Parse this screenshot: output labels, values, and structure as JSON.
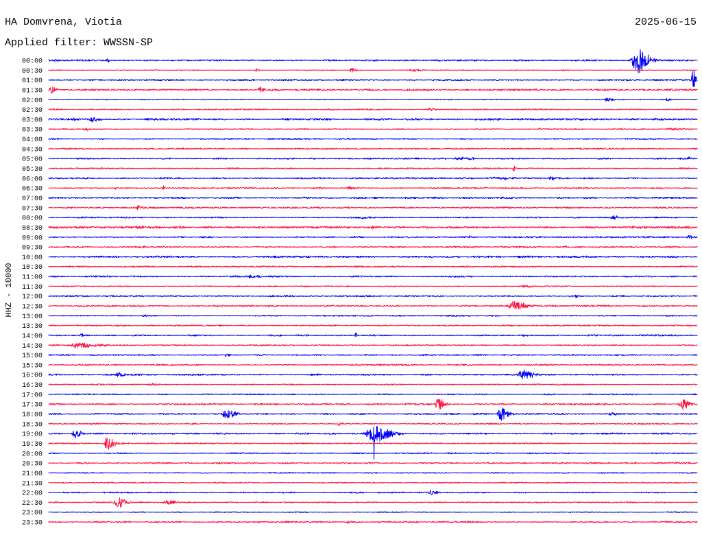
{
  "chart_data": {
    "type": "line",
    "title": "HA Domvrena, Viotia",
    "date": "2025-06-15",
    "filter_label": "Applied filter: WWSSN-SP",
    "ylabel": "HHZ - 10000",
    "colors": [
      "#0000f5",
      "#ff1444"
    ],
    "rows": [
      {
        "label": "00:00",
        "noise": 0.06,
        "events": [
          {
            "minute": 0.3,
            "amp": 0.12,
            "dur": 0.3
          },
          {
            "minute": 2.7,
            "amp": 0.15,
            "dur": 0.3
          },
          {
            "minute": 27.2,
            "amp": 1.3,
            "dur": 1.1
          }
        ]
      },
      {
        "label": "00:30",
        "noise": 0.03,
        "events": [
          {
            "minute": 9.6,
            "amp": 0.15,
            "dur": 0.3
          },
          {
            "minute": 14.0,
            "amp": 0.25,
            "dur": 0.4
          },
          {
            "minute": 16.8,
            "amp": 0.12,
            "dur": 1.0
          },
          {
            "minute": 23.8,
            "amp": 0.1,
            "dur": 0.3
          }
        ]
      },
      {
        "label": "01:00",
        "noise": 0.06,
        "events": [
          {
            "minute": 29.8,
            "amp": 1.0,
            "dur": 0.3
          },
          {
            "minute": 29.85,
            "amp": 2.4,
            "dur": 0.05
          }
        ]
      },
      {
        "label": "01:30",
        "noise": 0.07,
        "events": [
          {
            "minute": 0.1,
            "amp": 0.45,
            "dur": 0.5
          },
          {
            "minute": 3.0,
            "amp": 0.1,
            "dur": 0.2
          },
          {
            "minute": 9.8,
            "amp": 0.35,
            "dur": 0.5
          }
        ]
      },
      {
        "label": "02:00",
        "noise": 0.03,
        "events": [
          {
            "minute": 25.8,
            "amp": 0.2,
            "dur": 0.6
          },
          {
            "minute": 28.6,
            "amp": 0.12,
            "dur": 0.3
          }
        ]
      },
      {
        "label": "02:30",
        "noise": 0.05,
        "events": [
          {
            "minute": 17.6,
            "amp": 0.15,
            "dur": 0.8
          }
        ]
      },
      {
        "label": "03:00",
        "noise": 0.07,
        "events": [
          {
            "minute": 1.1,
            "amp": 0.12,
            "dur": 0.3
          },
          {
            "minute": 2.0,
            "amp": 0.3,
            "dur": 0.6
          },
          {
            "minute": 17.0,
            "amp": 0.1,
            "dur": 0.2
          }
        ]
      },
      {
        "label": "03:30",
        "noise": 0.04,
        "events": [
          {
            "minute": 1.7,
            "amp": 0.15,
            "dur": 0.4
          },
          {
            "minute": 22.7,
            "amp": 0.15,
            "dur": 0.2
          },
          {
            "minute": 26.5,
            "amp": 0.12,
            "dur": 0.3
          },
          {
            "minute": 28.7,
            "amp": 0.12,
            "dur": 1.2
          }
        ]
      },
      {
        "label": "04:00",
        "noise": 0.05,
        "events": [
          {
            "minute": 2.5,
            "amp": 0.1,
            "dur": 0.3
          }
        ]
      },
      {
        "label": "04:30",
        "noise": 0.05,
        "events": [
          {
            "minute": 6.2,
            "amp": 0.12,
            "dur": 0.2
          },
          {
            "minute": 9.0,
            "amp": 0.12,
            "dur": 0.4
          }
        ]
      },
      {
        "label": "05:00",
        "noise": 0.06,
        "events": [
          {
            "minute": 19.0,
            "amp": 0.12,
            "dur": 1.5
          },
          {
            "minute": 29.6,
            "amp": 0.15,
            "dur": 0.2
          }
        ]
      },
      {
        "label": "05:30",
        "noise": 0.05,
        "events": [
          {
            "minute": 2.4,
            "amp": 0.1,
            "dur": 0.2
          },
          {
            "minute": 21.5,
            "amp": 0.35,
            "dur": 0.15
          }
        ]
      },
      {
        "label": "06:00",
        "noise": 0.06,
        "events": [
          {
            "minute": 20.6,
            "amp": 0.12,
            "dur": 1.5
          },
          {
            "minute": 23.2,
            "amp": 0.25,
            "dur": 0.4
          }
        ]
      },
      {
        "label": "06:30",
        "noise": 0.05,
        "events": [
          {
            "minute": 3.1,
            "amp": 0.15,
            "dur": 0.2
          },
          {
            "minute": 5.3,
            "amp": 0.3,
            "dur": 0.15
          },
          {
            "minute": 13.9,
            "amp": 0.15,
            "dur": 0.7
          }
        ]
      },
      {
        "label": "07:00",
        "noise": 0.07,
        "events": []
      },
      {
        "label": "07:30",
        "noise": 0.06,
        "events": [
          {
            "minute": 4.1,
            "amp": 0.2,
            "dur": 0.5
          }
        ]
      },
      {
        "label": "08:00",
        "noise": 0.06,
        "events": [
          {
            "minute": 14.6,
            "amp": 0.1,
            "dur": 0.8
          },
          {
            "minute": 26.1,
            "amp": 0.2,
            "dur": 0.5
          }
        ]
      },
      {
        "label": "08:30",
        "noise": 0.08,
        "events": [
          {
            "minute": 3.5,
            "amp": 0.1,
            "dur": 3.0
          },
          {
            "minute": 15.0,
            "amp": 0.1,
            "dur": 1.2
          },
          {
            "minute": 26.8,
            "amp": 0.1,
            "dur": 1.5
          }
        ]
      },
      {
        "label": "09:00",
        "noise": 0.06,
        "events": [
          {
            "minute": 19.3,
            "amp": 0.12,
            "dur": 0.8
          },
          {
            "minute": 29.6,
            "amp": 0.2,
            "dur": 0.4
          }
        ]
      },
      {
        "label": "09:30",
        "noise": 0.06,
        "events": [
          {
            "minute": 4.4,
            "amp": 0.4,
            "dur": 0.1
          },
          {
            "minute": 23.9,
            "amp": 0.12,
            "dur": 0.2
          }
        ]
      },
      {
        "label": "10:00",
        "noise": 0.07,
        "events": []
      },
      {
        "label": "10:30",
        "noise": 0.05,
        "events": []
      },
      {
        "label": "11:00",
        "noise": 0.06,
        "events": [
          {
            "minute": 1.7,
            "amp": 0.12,
            "dur": 0.2
          },
          {
            "minute": 9.4,
            "amp": 0.2,
            "dur": 0.8
          }
        ]
      },
      {
        "label": "11:30",
        "noise": 0.04,
        "events": [
          {
            "minute": 22.0,
            "amp": 0.12,
            "dur": 0.8
          }
        ]
      },
      {
        "label": "12:00",
        "noise": 0.06,
        "events": [
          {
            "minute": 24.4,
            "amp": 0.15,
            "dur": 0.2
          }
        ]
      },
      {
        "label": "12:30",
        "noise": 0.06,
        "events": [
          {
            "minute": 21.5,
            "amp": 0.45,
            "dur": 1.2
          }
        ]
      },
      {
        "label": "13:00",
        "noise": 0.05,
        "events": [
          {
            "minute": 4.4,
            "amp": 0.1,
            "dur": 0.5
          },
          {
            "minute": 14.1,
            "amp": 0.1,
            "dur": 0.2
          }
        ]
      },
      {
        "label": "13:30",
        "noise": 0.05,
        "events": []
      },
      {
        "label": "14:00",
        "noise": 0.06,
        "events": [
          {
            "minute": 1.5,
            "amp": 0.2,
            "dur": 0.3
          },
          {
            "minute": 14.2,
            "amp": 0.4,
            "dur": 0.1
          },
          {
            "minute": 21.9,
            "amp": 0.12,
            "dur": 0.5
          }
        ]
      },
      {
        "label": "14:30",
        "noise": 0.05,
        "events": [
          {
            "minute": 1.3,
            "amp": 0.25,
            "dur": 2.0
          }
        ]
      },
      {
        "label": "15:00",
        "noise": 0.05,
        "events": [
          {
            "minute": 8.2,
            "amp": 0.15,
            "dur": 0.4
          }
        ]
      },
      {
        "label": "15:30",
        "noise": 0.06,
        "events": []
      },
      {
        "label": "16:00",
        "noise": 0.06,
        "events": [
          {
            "minute": 3.2,
            "amp": 0.25,
            "dur": 0.5
          },
          {
            "minute": 21.9,
            "amp": 0.55,
            "dur": 1.0
          }
        ]
      },
      {
        "label": "16:30",
        "noise": 0.05,
        "events": [
          {
            "minute": 4.7,
            "amp": 0.12,
            "dur": 0.8
          }
        ]
      },
      {
        "label": "17:00",
        "noise": 0.05,
        "events": []
      },
      {
        "label": "17:30",
        "noise": 0.06,
        "events": [
          {
            "minute": 18.0,
            "amp": 0.6,
            "dur": 0.6
          },
          {
            "minute": 29.3,
            "amp": 0.55,
            "dur": 0.7
          }
        ]
      },
      {
        "label": "18:00",
        "noise": 0.06,
        "events": [
          {
            "minute": 8.2,
            "amp": 0.45,
            "dur": 0.9
          },
          {
            "minute": 20.9,
            "amp": 0.7,
            "dur": 0.7
          },
          {
            "minute": 26.0,
            "amp": 0.12,
            "dur": 0.8
          }
        ]
      },
      {
        "label": "18:30",
        "noise": 0.05,
        "events": [
          {
            "minute": 13.4,
            "amp": 0.15,
            "dur": 0.5
          }
        ]
      },
      {
        "label": "19:00",
        "noise": 0.06,
        "events": [
          {
            "minute": 1.2,
            "amp": 0.45,
            "dur": 0.6
          },
          {
            "minute": 15.0,
            "amp": 0.85,
            "dur": 1.6
          },
          {
            "minute": 15.05,
            "amp": 2.8,
            "dur": 0.08
          }
        ]
      },
      {
        "label": "19:30",
        "noise": 0.05,
        "events": [
          {
            "minute": 2.7,
            "amp": 0.65,
            "dur": 0.7
          }
        ]
      },
      {
        "label": "20:00",
        "noise": 0.05,
        "events": []
      },
      {
        "label": "20:30",
        "noise": 0.06,
        "events": []
      },
      {
        "label": "21:00",
        "noise": 0.04,
        "events": []
      },
      {
        "label": "21:30",
        "noise": 0.04,
        "events": []
      },
      {
        "label": "22:00",
        "noise": 0.05,
        "events": [
          {
            "minute": 17.7,
            "amp": 0.25,
            "dur": 0.6
          }
        ]
      },
      {
        "label": "22:30",
        "noise": 0.05,
        "events": [
          {
            "minute": 3.2,
            "amp": 0.55,
            "dur": 0.8
          },
          {
            "minute": 5.5,
            "amp": 0.2,
            "dur": 1.0
          }
        ]
      },
      {
        "label": "23:00",
        "noise": 0.04,
        "events": []
      },
      {
        "label": "23:30",
        "noise": 0.06,
        "events": [
          {
            "minute": 13.8,
            "amp": 0.15,
            "dur": 0.3
          },
          {
            "minute": 19.3,
            "amp": 0.1,
            "dur": 0.2
          }
        ]
      }
    ]
  }
}
